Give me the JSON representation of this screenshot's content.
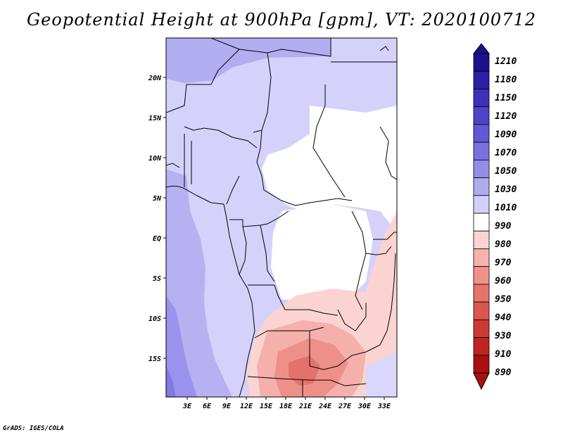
{
  "title": "Geopotential Height at 900hPa [gpm], VT: 2020100712",
  "credit": "GrADS: IGES/COLA",
  "map": {
    "lat_labels": [
      "20N",
      "15N",
      "10N",
      "5N",
      "EQ",
      "5S",
      "10S",
      "15S"
    ],
    "lon_labels": [
      "3E",
      "6E",
      "9E",
      "12E",
      "15E",
      "18E",
      "21E",
      "24E",
      "27E",
      "30E",
      "33E"
    ]
  },
  "colorbar": {
    "levels": [
      "1210",
      "1180",
      "1150",
      "1120",
      "1090",
      "1070",
      "1050",
      "1030",
      "1010",
      "990",
      "980",
      "970",
      "960",
      "950",
      "940",
      "930",
      "910",
      "890"
    ],
    "colors": [
      "#1e0f8c",
      "#2d1fa6",
      "#3e31b8",
      "#4e44c6",
      "#6058d4",
      "#7a70e0",
      "#958de8",
      "#b0aaf0",
      "#d2d0fa",
      "#ffffff",
      "#fcd5d3",
      "#f6b3ae",
      "#f0928b",
      "#e7736b",
      "#dc5550",
      "#cf3a37",
      "#bf2422",
      "#a8110f"
    ]
  }
}
